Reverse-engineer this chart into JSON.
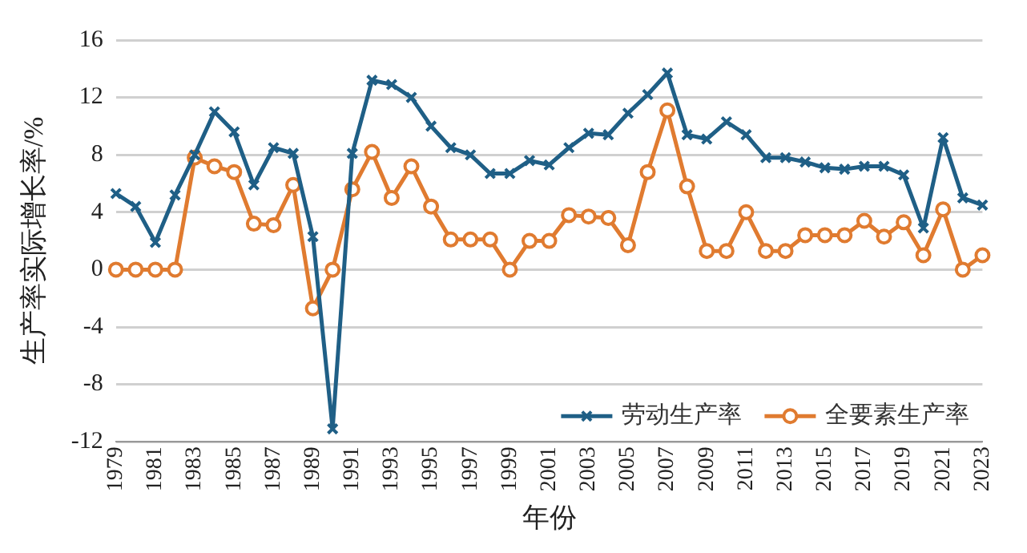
{
  "chart_data": {
    "type": "line",
    "xlabel": "年份",
    "ylabel": "生产率实际增长率/%",
    "categories": [
      "1979",
      null,
      "1981",
      null,
      "1983",
      null,
      "1985",
      null,
      "1987",
      null,
      "1989",
      null,
      "1991",
      null,
      "1993",
      null,
      "1995",
      null,
      "1997",
      null,
      "1999",
      null,
      "2001",
      null,
      "2003",
      null,
      "2005",
      null,
      "2007",
      null,
      "2009",
      null,
      "2011",
      null,
      "2013",
      null,
      "2015",
      null,
      "2017",
      null,
      "2019",
      null,
      "2021",
      null,
      "2023"
    ],
    "series": [
      {
        "name": "劳动生产率",
        "color": "#1f5f86",
        "marker": "cross",
        "values": [
          5.3,
          4.4,
          1.9,
          5.2,
          8.0,
          11.0,
          9.6,
          5.9,
          8.5,
          8.1,
          2.3,
          -11.1,
          8.1,
          13.2,
          12.9,
          12.0,
          10.0,
          8.5,
          8.0,
          6.7,
          6.7,
          7.6,
          7.3,
          8.5,
          9.5,
          9.4,
          10.9,
          12.2,
          13.7,
          9.4,
          9.1,
          10.3,
          9.4,
          7.8,
          7.8,
          7.5,
          7.1,
          7.0,
          7.2,
          7.2,
          6.6,
          2.9,
          9.2,
          5.0,
          4.5
        ]
      },
      {
        "name": "全要素生产率",
        "color": "#e07b30",
        "marker": "circle",
        "values": [
          0,
          0,
          0,
          0,
          7.8,
          7.2,
          6.8,
          3.2,
          3.1,
          5.9,
          -2.7,
          0,
          5.6,
          8.2,
          5.0,
          7.2,
          4.4,
          2.1,
          2.1,
          2.1,
          0,
          2.0,
          2.0,
          3.8,
          3.7,
          3.6,
          1.7,
          6.8,
          11.1,
          5.8,
          1.3,
          1.3,
          4.0,
          1.3,
          1.3,
          2.4,
          2.4,
          2.4,
          3.4,
          2.3,
          3.3,
          1.0,
          4.2,
          0,
          1.0
        ]
      }
    ],
    "ylim": [
      -12,
      16
    ],
    "yticks": [
      -12,
      -8,
      -4,
      0,
      4,
      8,
      12,
      16
    ],
    "grid": "y",
    "legend": "bottom right"
  }
}
